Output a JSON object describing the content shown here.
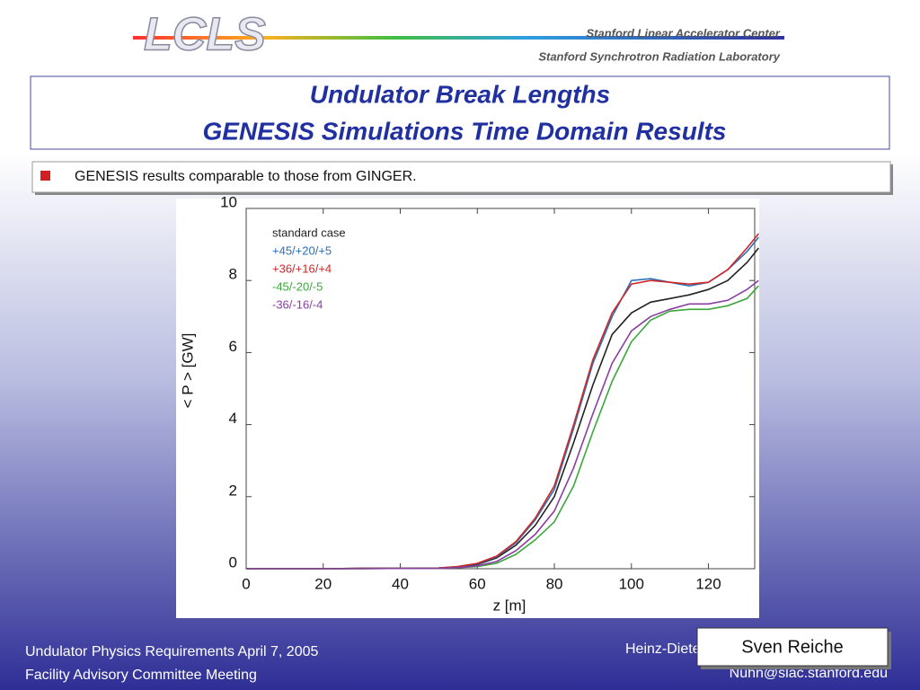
{
  "header": {
    "logo": "LCLS",
    "org1": "Stanford Linear Accelerator Center",
    "org2": "Stanford Synchrotron Radiation Laboratory"
  },
  "title": [
    "Undulator Break Lengths",
    "GENESIS Simulations Time Domain Results"
  ],
  "bullet": "GENESIS results comparable to those from GINGER.",
  "chart_data": {
    "type": "line",
    "x_label": "z [m]",
    "y_label": "< P > [GW]",
    "x": [
      0,
      10,
      20,
      30,
      40,
      50,
      55,
      60,
      65,
      70,
      75,
      80,
      85,
      90,
      95,
      100,
      105,
      110,
      115,
      120,
      125,
      130,
      133
    ],
    "series": [
      {
        "name": "standard case",
        "color": "#222222",
        "values": [
          0,
          0,
          0,
          0.01,
          0.01,
          0.02,
          0.05,
          0.12,
          0.3,
          0.65,
          1.2,
          2.0,
          3.5,
          5.1,
          6.5,
          7.1,
          7.4,
          7.5,
          7.6,
          7.75,
          8.0,
          8.5,
          8.9
        ]
      },
      {
        "name": "+45/+20/+5",
        "color": "#2a6fb8",
        "values": [
          0,
          0,
          0,
          0.01,
          0.01,
          0.02,
          0.06,
          0.14,
          0.33,
          0.72,
          1.35,
          2.2,
          3.9,
          5.7,
          7.0,
          8.0,
          8.05,
          7.95,
          7.85,
          7.95,
          8.3,
          8.8,
          9.2
        ]
      },
      {
        "name": "+36/+16/+4",
        "color": "#d02828",
        "values": [
          0,
          0,
          0,
          0.01,
          0.01,
          0.02,
          0.06,
          0.15,
          0.35,
          0.75,
          1.4,
          2.3,
          4.0,
          5.8,
          7.1,
          7.9,
          8.0,
          7.95,
          7.9,
          7.95,
          8.3,
          8.9,
          9.3
        ]
      },
      {
        "name": "-45/-20/-5",
        "color": "#3aa83a",
        "values": [
          0,
          0,
          0,
          0,
          0.01,
          0.01,
          0.03,
          0.06,
          0.15,
          0.4,
          0.8,
          1.3,
          2.3,
          3.8,
          5.2,
          6.3,
          6.9,
          7.15,
          7.2,
          7.2,
          7.3,
          7.5,
          7.85
        ]
      },
      {
        "name": "-36/-16/-4",
        "color": "#8a3ea0",
        "values": [
          0,
          0,
          0,
          0,
          0.01,
          0.01,
          0.03,
          0.08,
          0.2,
          0.5,
          0.95,
          1.6,
          2.8,
          4.3,
          5.7,
          6.6,
          7.0,
          7.2,
          7.35,
          7.35,
          7.45,
          7.75,
          8.0
        ]
      }
    ],
    "xlim": [
      0,
      132
    ],
    "ylim": [
      0,
      10
    ],
    "xticks": [
      0,
      20,
      40,
      60,
      80,
      100,
      120
    ],
    "yticks": [
      0,
      2,
      4,
      6,
      8,
      10
    ]
  },
  "footer": {
    "left1": "Undulator Physics Requirements  April 7, 2005",
    "left2": "Facility Advisory Committee Meeting",
    "author": "Heinz-Dieter Nuhn",
    "email": "Nuhn@slac.stanford.edu",
    "presenter": "Sven Reiche"
  }
}
